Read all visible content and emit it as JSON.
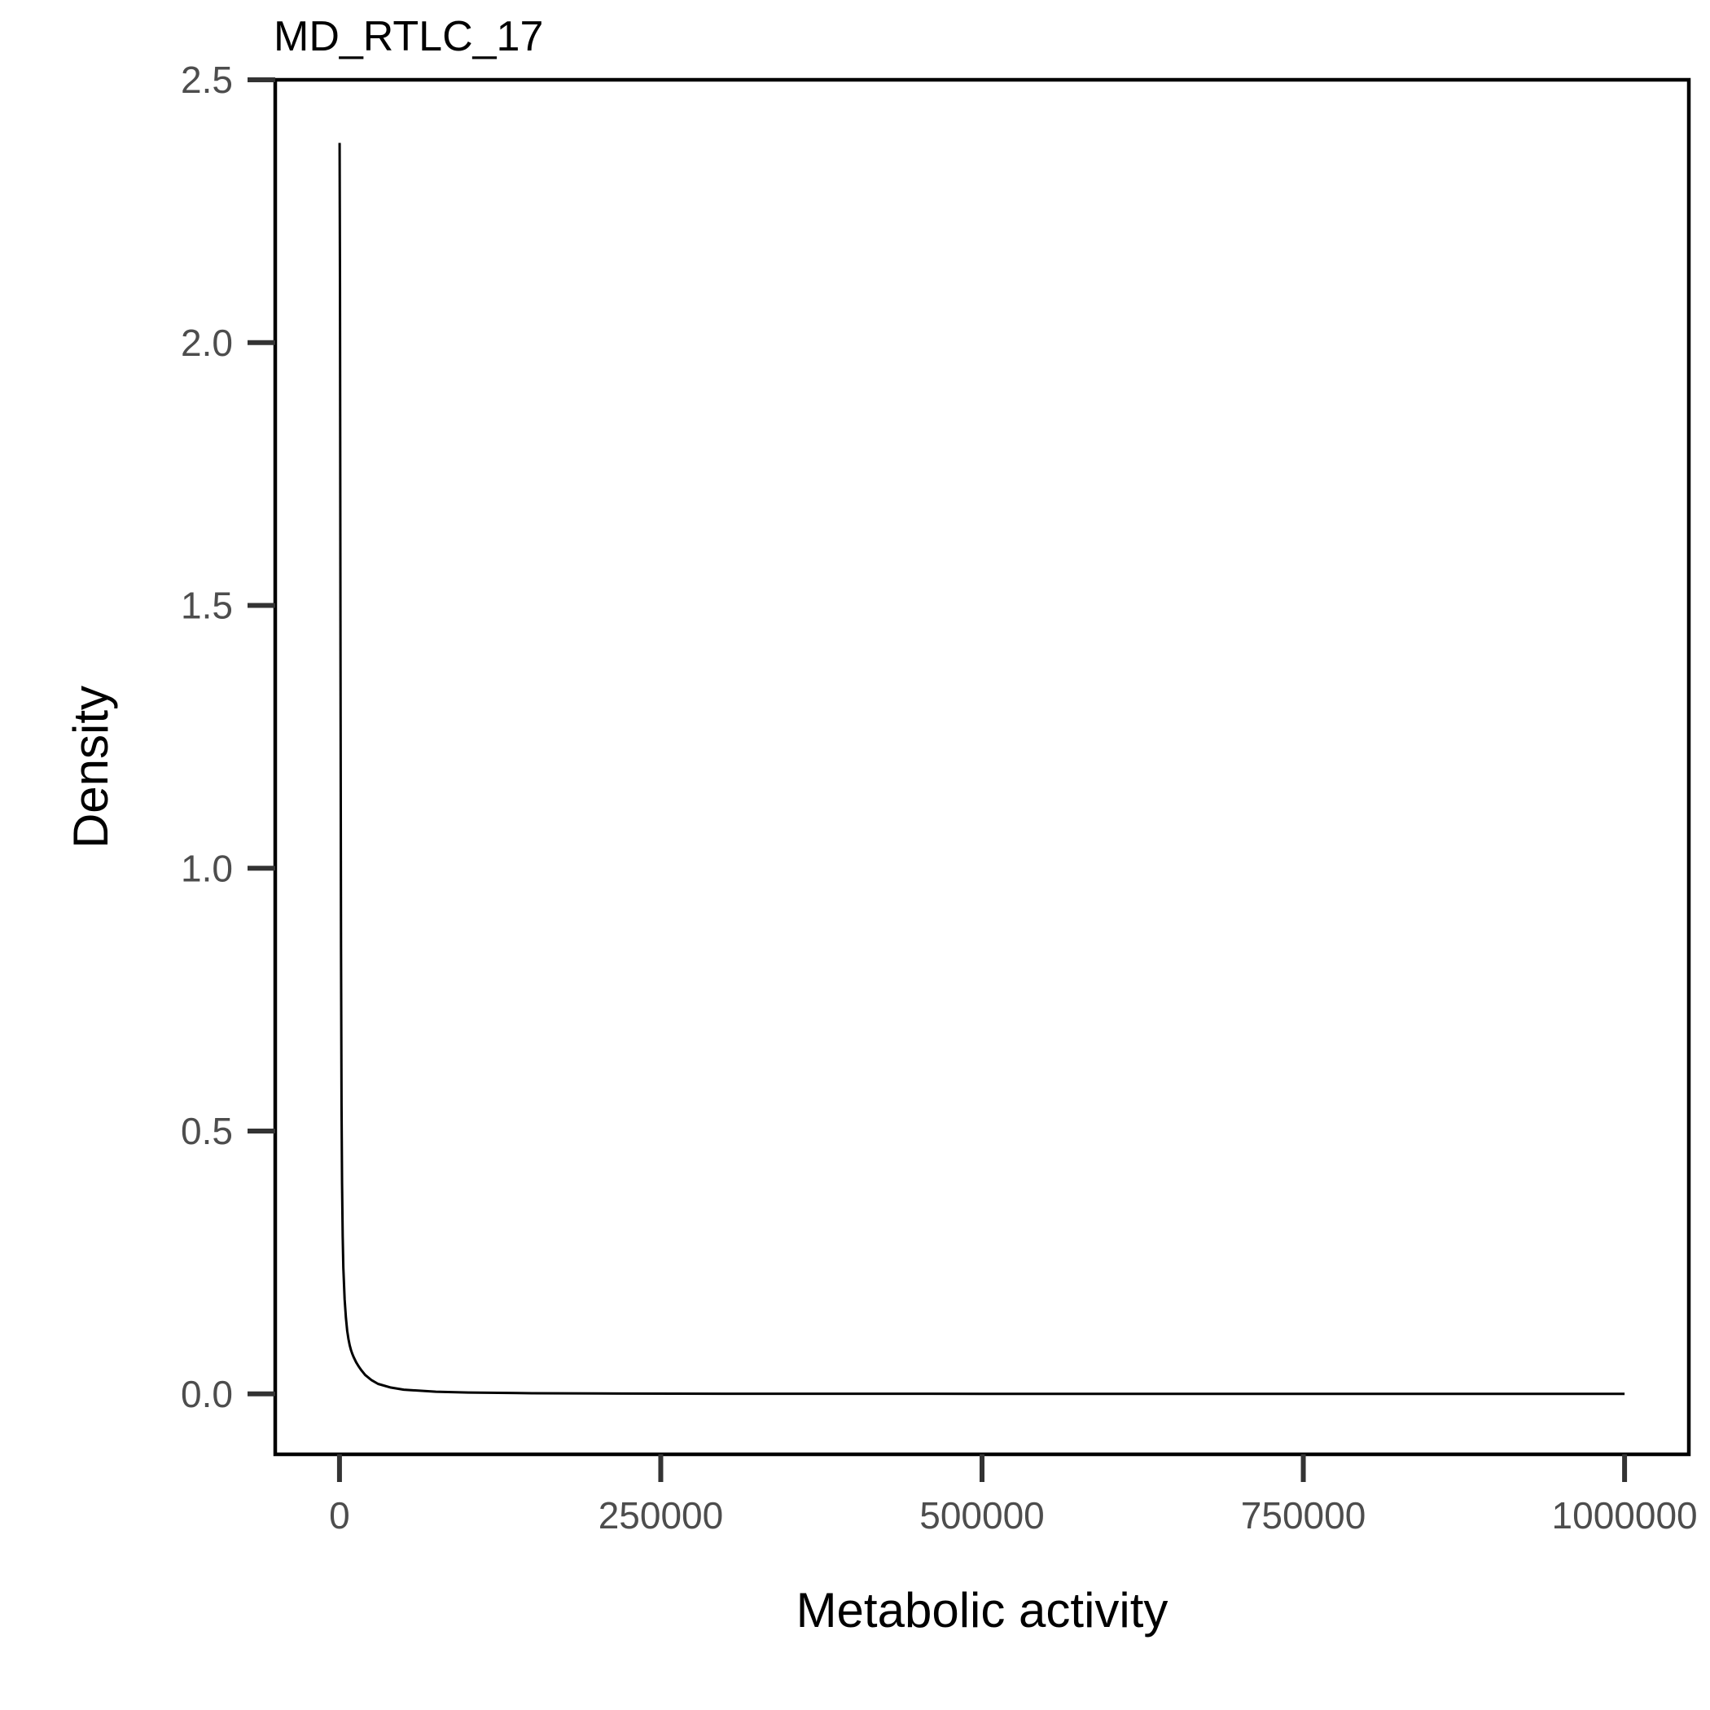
{
  "chart_data": {
    "type": "line",
    "title": "MD_RTLC_17",
    "xlabel": "Metabolic activity",
    "ylabel": "Density",
    "xlim": [
      -50000,
      1050000
    ],
    "ylim": [
      -0.115,
      2.5
    ],
    "xticks": [
      0,
      250000,
      500000,
      750000,
      1000000
    ],
    "xtick_labels": [
      "0",
      "250000",
      "500000",
      "750000",
      "1000000"
    ],
    "yticks": [
      0.0,
      0.5,
      1.0,
      1.5,
      2.0,
      2.5
    ],
    "ytick_labels": [
      "0.0",
      "0.5",
      "1.0",
      "1.5",
      "2.0",
      "2.5"
    ],
    "grid": false,
    "legend": "none",
    "series": [
      {
        "color": "#000000",
        "x": [
          100,
          400,
          800,
          1200,
          1600,
          2000,
          2500,
          3000,
          4000,
          5000,
          6000,
          7000,
          8000,
          9000,
          10000,
          11000,
          12000,
          13000,
          14000,
          15000,
          17000,
          20000,
          25000,
          30000,
          40000,
          50000,
          75000,
          100000,
          150000,
          200000,
          300000,
          500000,
          750000,
          1000000
        ],
        "y": [
          2.38,
          2.1,
          1.4,
          0.85,
          0.55,
          0.4,
          0.3,
          0.24,
          0.18,
          0.145,
          0.12,
          0.104,
          0.092,
          0.083,
          0.076,
          0.07,
          0.065,
          0.06,
          0.056,
          0.052,
          0.045,
          0.036,
          0.026,
          0.019,
          0.012,
          0.008,
          0.004,
          0.0025,
          0.0012,
          0.0007,
          0.0003,
          0.0001,
          3e-05,
          0.0
        ]
      }
    ]
  }
}
